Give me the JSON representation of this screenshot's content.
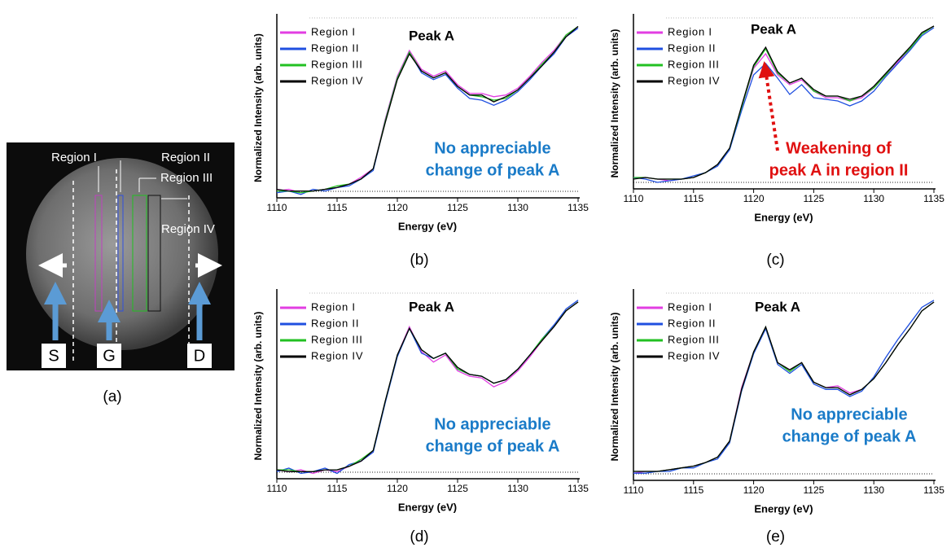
{
  "panel_a": {
    "region_labels": [
      "Region I",
      "Region II",
      "Region III",
      "Region IV"
    ],
    "terminals": [
      "S",
      "G",
      "D"
    ],
    "panel_label": "(a)"
  },
  "chart_data": [
    {
      "type": "line",
      "panel_label": "(b)",
      "xlabel": "Energy (eV)",
      "ylabel": "Normalized Intensity (arb. units)",
      "peak_label": "Peak A",
      "note_lines": [
        "No appreciable",
        "change of peak A"
      ],
      "note_color": "#1a7bc8",
      "legend": "upper left",
      "xlim": [
        1110,
        1135
      ],
      "xticks": [
        1110,
        1115,
        1120,
        1125,
        1130,
        1135
      ],
      "ylim": [
        0,
        1.05
      ],
      "x": [
        1110,
        1111,
        1112,
        1113,
        1114,
        1115,
        1116,
        1117,
        1118,
        1119,
        1120,
        1121,
        1122,
        1123,
        1124,
        1125,
        1126,
        1127,
        1128,
        1129,
        1130,
        1131,
        1132,
        1133,
        1134,
        1135
      ],
      "series": [
        {
          "name": "Region I",
          "color": "#e23ee2",
          "values": [
            0.04,
            0.05,
            0.03,
            0.04,
            0.05,
            0.06,
            0.08,
            0.12,
            0.17,
            0.46,
            0.71,
            0.86,
            0.75,
            0.71,
            0.74,
            0.66,
            0.61,
            0.61,
            0.59,
            0.6,
            0.64,
            0.71,
            0.79,
            0.86,
            0.95,
            1.0
          ]
        },
        {
          "name": "Region II",
          "color": "#1f4fe0",
          "values": [
            0.03,
            0.04,
            0.02,
            0.05,
            0.04,
            0.06,
            0.07,
            0.11,
            0.16,
            0.45,
            0.7,
            0.85,
            0.73,
            0.69,
            0.72,
            0.64,
            0.58,
            0.57,
            0.54,
            0.57,
            0.62,
            0.69,
            0.77,
            0.84,
            0.94,
            0.99
          ]
        },
        {
          "name": "Region III",
          "color": "#22c022",
          "values": [
            0.04,
            0.04,
            0.03,
            0.04,
            0.05,
            0.07,
            0.08,
            0.11,
            0.17,
            0.45,
            0.7,
            0.85,
            0.74,
            0.7,
            0.73,
            0.65,
            0.6,
            0.59,
            0.57,
            0.58,
            0.63,
            0.7,
            0.78,
            0.85,
            0.95,
            1.0
          ]
        },
        {
          "name": "Region IV",
          "color": "#000000",
          "values": [
            0.05,
            0.04,
            0.04,
            0.04,
            0.05,
            0.06,
            0.08,
            0.11,
            0.17,
            0.44,
            0.69,
            0.84,
            0.74,
            0.7,
            0.73,
            0.65,
            0.6,
            0.6,
            0.56,
            0.59,
            0.63,
            0.7,
            0.77,
            0.85,
            0.94,
            1.0
          ]
        }
      ]
    },
    {
      "type": "line",
      "panel_label": "(c)",
      "xlabel": "Energy (eV)",
      "ylabel": "Normalized Intensity (arb. units)",
      "peak_label": "Peak A",
      "note_lines": [
        "Weakening of",
        "peak A in region II"
      ],
      "note_color": "#e01010",
      "legend": "upper left",
      "xlim": [
        1110,
        1135
      ],
      "xticks": [
        1110,
        1115,
        1120,
        1125,
        1130,
        1135
      ],
      "ylim": [
        0,
        1.05
      ],
      "x": [
        1110,
        1111,
        1112,
        1113,
        1114,
        1115,
        1116,
        1117,
        1118,
        1119,
        1120,
        1121,
        1122,
        1123,
        1124,
        1125,
        1126,
        1127,
        1128,
        1129,
        1130,
        1131,
        1132,
        1133,
        1134,
        1135
      ],
      "series": [
        {
          "name": "Region I",
          "color": "#e23ee2",
          "values": [
            0.07,
            0.07,
            0.06,
            0.05,
            0.06,
            0.07,
            0.1,
            0.15,
            0.25,
            0.5,
            0.74,
            0.83,
            0.7,
            0.64,
            0.67,
            0.6,
            0.56,
            0.56,
            0.54,
            0.56,
            0.62,
            0.7,
            0.78,
            0.86,
            0.95,
            1.0
          ]
        },
        {
          "name": "Region II",
          "color": "#1f4fe0",
          "values": [
            0.07,
            0.06,
            0.04,
            0.05,
            0.06,
            0.08,
            0.1,
            0.14,
            0.24,
            0.48,
            0.7,
            0.77,
            0.68,
            0.58,
            0.64,
            0.56,
            0.55,
            0.54,
            0.51,
            0.54,
            0.6,
            0.69,
            0.77,
            0.85,
            0.94,
            0.99
          ]
        },
        {
          "name": "Region III",
          "color": "#22c022",
          "values": [
            0.07,
            0.07,
            0.06,
            0.06,
            0.06,
            0.07,
            0.1,
            0.15,
            0.25,
            0.5,
            0.75,
            0.86,
            0.71,
            0.65,
            0.68,
            0.6,
            0.57,
            0.57,
            0.54,
            0.57,
            0.62,
            0.7,
            0.79,
            0.86,
            0.95,
            1.0
          ]
        },
        {
          "name": "Region IV",
          "color": "#000000",
          "values": [
            0.06,
            0.07,
            0.06,
            0.06,
            0.06,
            0.07,
            0.1,
            0.15,
            0.25,
            0.51,
            0.76,
            0.87,
            0.72,
            0.65,
            0.68,
            0.61,
            0.57,
            0.57,
            0.55,
            0.57,
            0.63,
            0.71,
            0.79,
            0.87,
            0.96,
            1.0
          ]
        }
      ]
    },
    {
      "type": "line",
      "panel_label": "(d)",
      "xlabel": "Energy (eV)",
      "ylabel": "Normalized Intensity (arb. units)",
      "peak_label": "Peak A",
      "note_lines": [
        "No appreciable",
        "change of peak A"
      ],
      "note_color": "#1a7bc8",
      "legend": "upper left",
      "xlim": [
        1110,
        1135
      ],
      "xticks": [
        1110,
        1115,
        1120,
        1125,
        1130,
        1135
      ],
      "ylim": [
        0,
        1.05
      ],
      "x": [
        1110,
        1111,
        1112,
        1113,
        1114,
        1115,
        1116,
        1117,
        1118,
        1119,
        1120,
        1121,
        1122,
        1123,
        1124,
        1125,
        1126,
        1127,
        1128,
        1129,
        1130,
        1131,
        1132,
        1133,
        1134,
        1135
      ],
      "series": [
        {
          "name": "Region I",
          "color": "#e23ee2",
          "values": [
            0.05,
            0.04,
            0.05,
            0.03,
            0.05,
            0.04,
            0.07,
            0.1,
            0.16,
            0.44,
            0.7,
            0.86,
            0.72,
            0.66,
            0.7,
            0.61,
            0.58,
            0.57,
            0.52,
            0.55,
            0.61,
            0.69,
            0.78,
            0.86,
            0.95,
            1.0
          ]
        },
        {
          "name": "Region II",
          "color": "#1f4fe0",
          "values": [
            0.04,
            0.06,
            0.03,
            0.04,
            0.06,
            0.03,
            0.08,
            0.1,
            0.15,
            0.43,
            0.69,
            0.85,
            0.71,
            0.68,
            0.71,
            0.62,
            0.59,
            0.58,
            0.54,
            0.56,
            0.62,
            0.7,
            0.79,
            0.87,
            0.96,
            1.01
          ]
        },
        {
          "name": "Region III",
          "color": "#22c022",
          "values": [
            0.05,
            0.05,
            0.04,
            0.04,
            0.05,
            0.05,
            0.07,
            0.11,
            0.16,
            0.44,
            0.7,
            0.85,
            0.73,
            0.68,
            0.71,
            0.62,
            0.59,
            0.58,
            0.54,
            0.56,
            0.62,
            0.7,
            0.79,
            0.86,
            0.95,
            1.0
          ]
        },
        {
          "name": "Region IV",
          "color": "#000000",
          "values": [
            0.05,
            0.04,
            0.04,
            0.04,
            0.05,
            0.05,
            0.07,
            0.1,
            0.16,
            0.44,
            0.7,
            0.85,
            0.73,
            0.68,
            0.71,
            0.63,
            0.59,
            0.58,
            0.54,
            0.56,
            0.62,
            0.7,
            0.78,
            0.86,
            0.95,
            1.0
          ]
        }
      ]
    },
    {
      "type": "line",
      "panel_label": "(e)",
      "xlabel": "Energy (eV)",
      "ylabel": "Normalized Intensity (arb. units)",
      "peak_label": "Peak A",
      "note_lines": [
        "No appreciable",
        "change of peak A"
      ],
      "note_color": "#1a7bc8",
      "legend": "upper left",
      "xlim": [
        1110,
        1135
      ],
      "xticks": [
        1110,
        1115,
        1120,
        1125,
        1130,
        1135
      ],
      "ylim": [
        0,
        1.05
      ],
      "x": [
        1110,
        1111,
        1112,
        1113,
        1114,
        1115,
        1116,
        1117,
        1118,
        1119,
        1120,
        1121,
        1122,
        1123,
        1124,
        1125,
        1126,
        1127,
        1128,
        1129,
        1130,
        1131,
        1132,
        1133,
        1134,
        1135
      ],
      "series": [
        {
          "name": "Region I",
          "color": "#e23ee2",
          "values": [
            0.04,
            0.05,
            0.05,
            0.06,
            0.07,
            0.08,
            0.1,
            0.13,
            0.22,
            0.52,
            0.72,
            0.86,
            0.66,
            0.62,
            0.66,
            0.55,
            0.52,
            0.53,
            0.49,
            0.51,
            0.57,
            0.66,
            0.76,
            0.85,
            0.95,
            1.0
          ]
        },
        {
          "name": "Region II",
          "color": "#1f4fe0",
          "values": [
            0.04,
            0.04,
            0.05,
            0.05,
            0.07,
            0.07,
            0.1,
            0.12,
            0.21,
            0.5,
            0.71,
            0.85,
            0.65,
            0.6,
            0.65,
            0.54,
            0.51,
            0.51,
            0.47,
            0.5,
            0.58,
            0.69,
            0.79,
            0.88,
            0.97,
            1.01
          ]
        },
        {
          "name": "Region III",
          "color": "#22c022",
          "values": [
            0.05,
            0.05,
            0.05,
            0.06,
            0.07,
            0.08,
            0.1,
            0.13,
            0.22,
            0.51,
            0.72,
            0.86,
            0.66,
            0.61,
            0.66,
            0.55,
            0.52,
            0.52,
            0.48,
            0.51,
            0.57,
            0.66,
            0.76,
            0.85,
            0.95,
            1.0
          ]
        },
        {
          "name": "Region IV",
          "color": "#000000",
          "values": [
            0.05,
            0.05,
            0.05,
            0.06,
            0.07,
            0.08,
            0.1,
            0.13,
            0.22,
            0.51,
            0.72,
            0.86,
            0.66,
            0.62,
            0.66,
            0.55,
            0.52,
            0.52,
            0.48,
            0.51,
            0.57,
            0.66,
            0.76,
            0.85,
            0.95,
            1.0
          ]
        }
      ]
    }
  ]
}
